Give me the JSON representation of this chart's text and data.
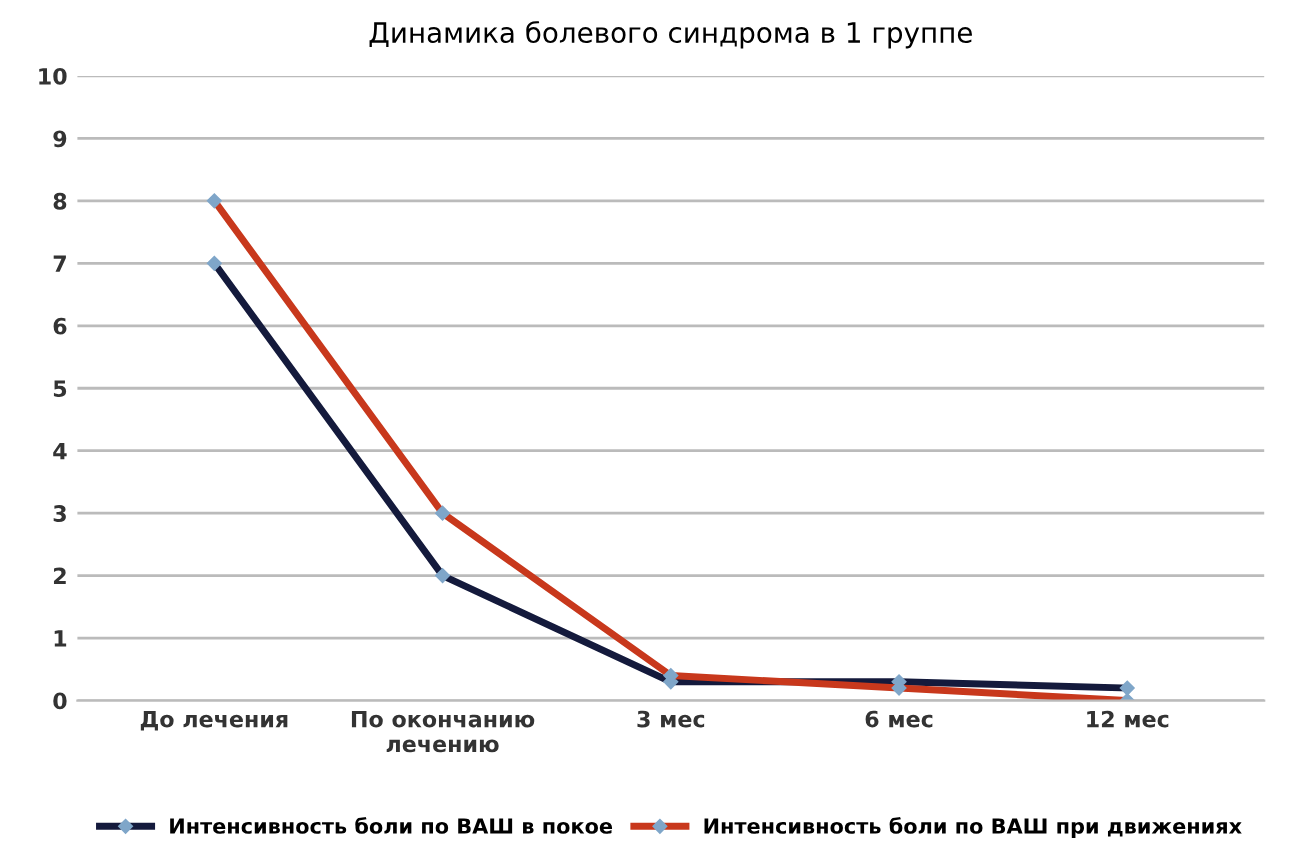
{
  "chart_data": {
    "type": "line",
    "title": "Динамика болевого синдрома в 1 группе",
    "categories": [
      "До лечения",
      "По окончанию\nлечению",
      "3 мес",
      "6 мес",
      "12 мес"
    ],
    "series": [
      {
        "name": "Интенсивность боли по ВАШ в покое",
        "color": "#141a3c",
        "values": [
          7,
          2,
          0.3,
          0.3,
          0.2
        ]
      },
      {
        "name": "Интенсивность боли по ВАШ при движениях",
        "color": "#c8381c",
        "values": [
          8,
          3,
          0.4,
          0.2,
          0.0
        ]
      }
    ],
    "ylim": [
      0,
      10
    ],
    "yticks": [
      0,
      1,
      2,
      3,
      4,
      5,
      6,
      7,
      8,
      9,
      10
    ],
    "grid": "y",
    "legend": "bottom",
    "marker": "diamond",
    "line_style": "solid"
  }
}
